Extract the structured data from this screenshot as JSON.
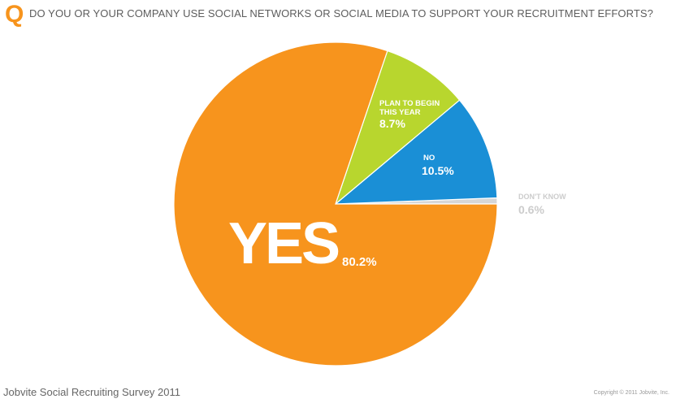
{
  "header": {
    "badge": "Q",
    "question": "DO YOU OR YOUR COMPANY USE SOCIAL NETWORKS OR SOCIAL MEDIA TO SUPPORT YOUR RECRUITMENT EFFORTS?"
  },
  "chart_data": {
    "type": "pie",
    "categories": [
      "YES",
      "PLAN TO BEGIN THIS YEAR",
      "NO",
      "DON'T KNOW"
    ],
    "values": [
      80.2,
      8.7,
      10.5,
      0.6
    ],
    "value_labels": [
      "80.2%",
      "8.7%",
      "10.5%",
      "0.6%"
    ],
    "label_lines": [
      [
        "YES"
      ],
      [
        "PLAN TO BEGIN",
        "THIS YEAR"
      ],
      [
        "NO"
      ],
      [
        "DON'T KNOW"
      ]
    ],
    "colors": [
      "#f7941d",
      "#b8d62e",
      "#1a8fd6",
      "#d6d6d6"
    ],
    "label_colors": [
      "#ffffff",
      "#ffffff",
      "#ffffff",
      "#cccccc"
    ],
    "legend": "none"
  },
  "footer": {
    "source": "Jobvite Social Recruiting Survey 2011",
    "copyright": "Copyright © 2011 Jobvite, Inc."
  }
}
